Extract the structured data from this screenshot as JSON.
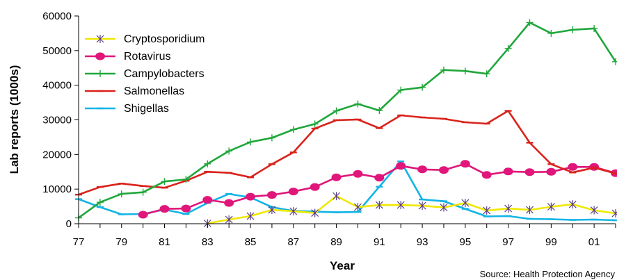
{
  "chart_data": {
    "type": "line",
    "title": "",
    "xlabel": "Year",
    "ylabel": "Lab reports (1000s)",
    "source": "Source: Health Protection Agency",
    "xlim": [
      1977,
      2002
    ],
    "ylim": [
      0,
      60000
    ],
    "x_ticks": [
      1977,
      1979,
      1981,
      1983,
      1985,
      1987,
      1989,
      1991,
      1993,
      1995,
      1997,
      1999,
      2001
    ],
    "x_tick_labels": [
      "77",
      "79",
      "81",
      "83",
      "85",
      "87",
      "89",
      "91",
      "93",
      "95",
      "97",
      "99",
      "01"
    ],
    "y_ticks": [
      0,
      10000,
      20000,
      30000,
      40000,
      50000,
      60000
    ],
    "y_tick_labels": [
      "0",
      "10000",
      "20000",
      "30000",
      "40000",
      "50000",
      "60000"
    ],
    "grid": false,
    "legend_position": "top-left",
    "series": [
      {
        "name": "Cryptosporidium",
        "color": "#f0e800",
        "marker": "star",
        "points": [
          [
            1983,
            100
          ],
          [
            1984,
            1200
          ],
          [
            1985,
            2200
          ],
          [
            1986,
            4000
          ],
          [
            1987,
            3600
          ],
          [
            1988,
            3100
          ],
          [
            1989,
            8000
          ],
          [
            1990,
            4800
          ],
          [
            1991,
            5400
          ],
          [
            1992,
            5400
          ],
          [
            1993,
            5200
          ],
          [
            1994,
            4700
          ],
          [
            1995,
            6000
          ],
          [
            1996,
            3800
          ],
          [
            1997,
            4400
          ],
          [
            1998,
            4000
          ],
          [
            1999,
            4900
          ],
          [
            2000,
            5600
          ],
          [
            2001,
            3900
          ],
          [
            2002,
            3000
          ]
        ]
      },
      {
        "name": "Rotavirus",
        "color": "#e0167a",
        "marker": "dot",
        "points": [
          [
            1980,
            2600
          ],
          [
            1981,
            4300
          ],
          [
            1982,
            4400
          ],
          [
            1983,
            6900
          ],
          [
            1984,
            6000
          ],
          [
            1985,
            7800
          ],
          [
            1986,
            8300
          ],
          [
            1987,
            9300
          ],
          [
            1988,
            10600
          ],
          [
            1989,
            13400
          ],
          [
            1990,
            14400
          ],
          [
            1991,
            13300
          ],
          [
            1992,
            16700
          ],
          [
            1993,
            15700
          ],
          [
            1994,
            15500
          ],
          [
            1995,
            17300
          ],
          [
            1996,
            14100
          ],
          [
            1997,
            15100
          ],
          [
            1998,
            14900
          ],
          [
            1999,
            15000
          ],
          [
            2000,
            16400
          ],
          [
            2001,
            16400
          ],
          [
            2002,
            14600
          ]
        ]
      },
      {
        "name": "Campylobacters",
        "color": "#1fa73a",
        "marker": "plus",
        "points": [
          [
            1977,
            1700
          ],
          [
            1978,
            6200
          ],
          [
            1979,
            8600
          ],
          [
            1980,
            9100
          ],
          [
            1981,
            12200
          ],
          [
            1982,
            12800
          ],
          [
            1983,
            17300
          ],
          [
            1984,
            21000
          ],
          [
            1985,
            23600
          ],
          [
            1986,
            24800
          ],
          [
            1987,
            27200
          ],
          [
            1988,
            28800
          ],
          [
            1989,
            32600
          ],
          [
            1990,
            34600
          ],
          [
            1991,
            32700
          ],
          [
            1992,
            38600
          ],
          [
            1993,
            39400
          ],
          [
            1994,
            44400
          ],
          [
            1995,
            44100
          ],
          [
            1996,
            43300
          ],
          [
            1997,
            50600
          ],
          [
            1998,
            58100
          ],
          [
            1999,
            55000
          ],
          [
            2000,
            56000
          ],
          [
            2001,
            56400
          ],
          [
            2002,
            46800
          ]
        ]
      },
      {
        "name": "Salmonellas",
        "color": "#d9231c",
        "marker": "dash",
        "points": [
          [
            1977,
            8400
          ],
          [
            1978,
            10600
          ],
          [
            1979,
            11600
          ],
          [
            1980,
            10900
          ],
          [
            1981,
            10400
          ],
          [
            1982,
            12400
          ],
          [
            1983,
            15000
          ],
          [
            1984,
            14700
          ],
          [
            1985,
            13400
          ],
          [
            1986,
            17200
          ],
          [
            1987,
            20600
          ],
          [
            1988,
            27500
          ],
          [
            1989,
            29900
          ],
          [
            1990,
            30100
          ],
          [
            1991,
            27600
          ],
          [
            1992,
            31300
          ],
          [
            1993,
            30700
          ],
          [
            1994,
            30300
          ],
          [
            1995,
            29300
          ],
          [
            1996,
            28900
          ],
          [
            1997,
            32600
          ],
          [
            1998,
            23400
          ],
          [
            1999,
            17200
          ],
          [
            2000,
            14800
          ],
          [
            2001,
            16200
          ],
          [
            2002,
            14500
          ]
        ]
      },
      {
        "name": "Shigellas",
        "color": "#12b4e6",
        "marker": "dash",
        "points": [
          [
            1977,
            7100
          ],
          [
            1978,
            4800
          ],
          [
            1979,
            2700
          ],
          [
            1980,
            2800
          ],
          [
            1981,
            4100
          ],
          [
            1982,
            2800
          ],
          [
            1983,
            6000
          ],
          [
            1984,
            8600
          ],
          [
            1985,
            7600
          ],
          [
            1986,
            4800
          ],
          [
            1987,
            3700
          ],
          [
            1988,
            3500
          ],
          [
            1989,
            3300
          ],
          [
            1990,
            3400
          ],
          [
            1991,
            10700
          ],
          [
            1992,
            18000
          ],
          [
            1993,
            7000
          ],
          [
            1994,
            6500
          ],
          [
            1995,
            4300
          ],
          [
            1996,
            2100
          ],
          [
            1997,
            2200
          ],
          [
            1998,
            1400
          ],
          [
            1999,
            1300
          ],
          [
            2000,
            1100
          ],
          [
            2001,
            1200
          ],
          [
            2002,
            1000
          ]
        ]
      }
    ]
  }
}
